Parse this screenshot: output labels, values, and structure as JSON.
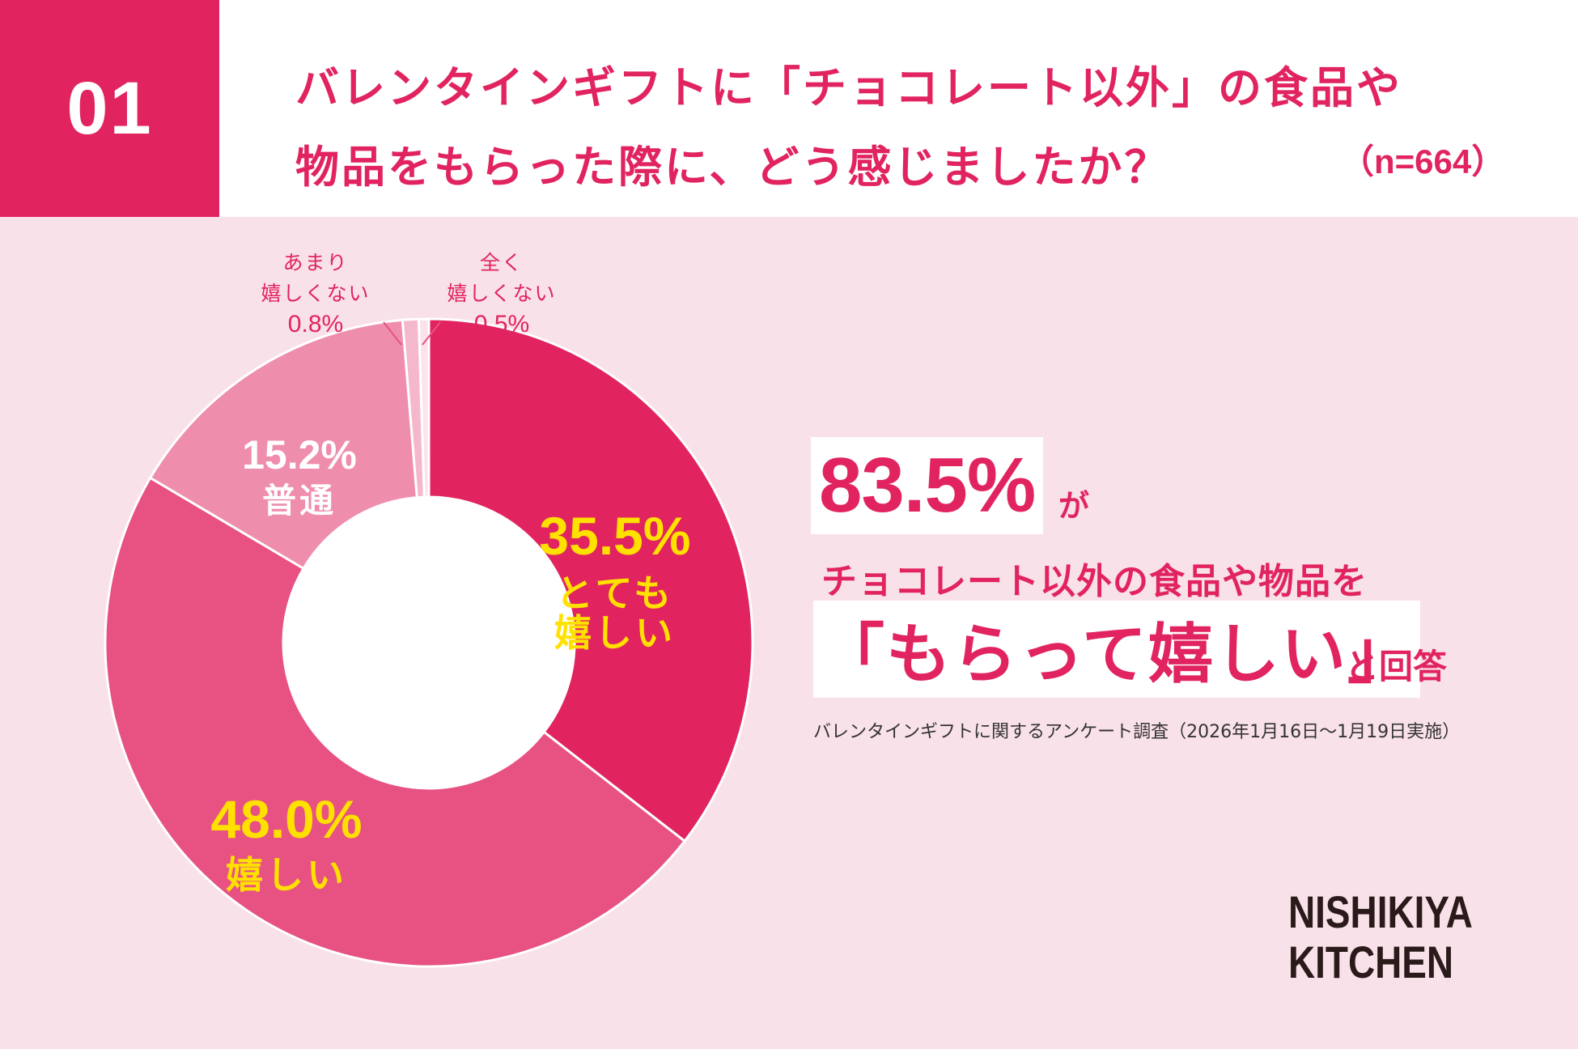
{
  "header": {
    "number": "01",
    "question_line1": "バレンタインギフトに「チョコレート以外」の食品や",
    "question_line2": "物品をもらった際に、どう感じましたか？",
    "sample_size": "（n=664）"
  },
  "chart_data": {
    "type": "pie",
    "donut": true,
    "categories": [
      "とても嬉しい",
      "嬉しい",
      "普通",
      "あまり嬉しくない",
      "全く嬉しくない"
    ],
    "values": [
      35.5,
      48.0,
      15.2,
      0.8,
      0.5
    ],
    "colors": [
      "#e1245f",
      "#e75282",
      "#ef8dac",
      "#f5b7cb",
      "#fbe3eb"
    ],
    "labels": [
      {
        "pct": "35.5%",
        "name_line1": "とても",
        "name_line2": "嬉しい",
        "color": "#ffe100"
      },
      {
        "pct": "48.0%",
        "name_line1": "嬉しい",
        "name_line2": "",
        "color": "#ffe100"
      },
      {
        "pct": "15.2%",
        "name_line1": "普通",
        "name_line2": "",
        "color": "#ffffff"
      },
      {
        "pct": "0.8%",
        "name_line1": "あまり",
        "name_line2": "嬉しくない",
        "color": "#e1245f"
      },
      {
        "pct": "0.5%",
        "name_line1": "全く",
        "name_line2": "嬉しくない",
        "color": "#e1245f"
      }
    ]
  },
  "headline": {
    "big_pct": "83.5%",
    "ga": "が",
    "line2": "チョコレート以外の食品や物品を",
    "highlight": "「もらって嬉しい」",
    "suffix": "と回答"
  },
  "footnote": "バレンタインギフトに関するアンケート調査（2026年1月16日〜1月19日実施）",
  "logo": {
    "line1": "NISHIKIYA",
    "line2": "KITCHEN"
  },
  "colors": {
    "brand": "#e1245f",
    "background": "#f9e1e9",
    "label_yellow": "#ffe100"
  }
}
